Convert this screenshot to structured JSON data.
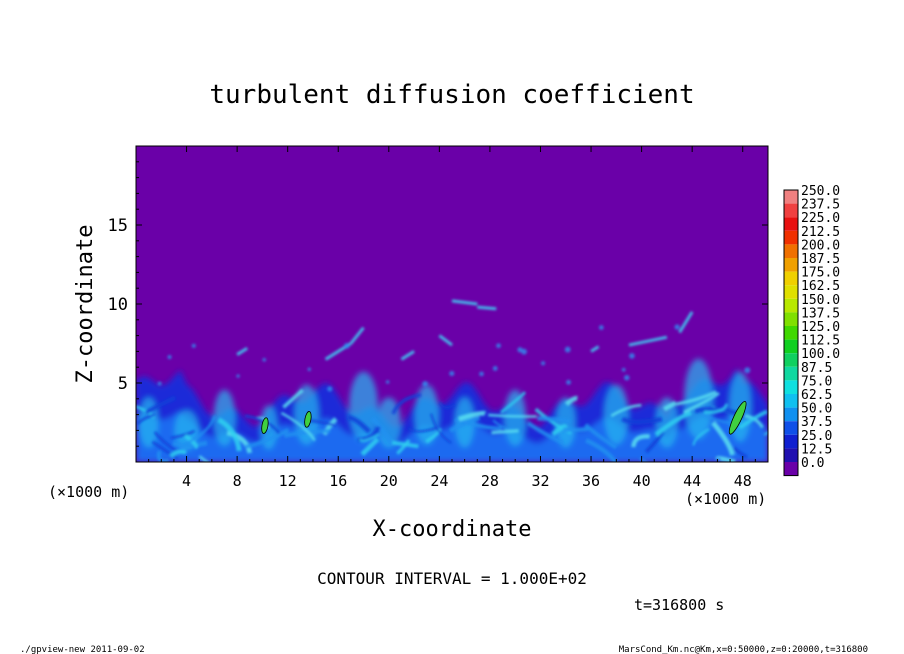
{
  "chart_data": {
    "type": "heatmap",
    "title": "turbulent diffusion coefficient",
    "xlabel": "X-coordinate",
    "ylabel": "Z-coordinate",
    "x_unit": "(×1000 m)",
    "y_unit": "(×1000 m)",
    "xlim": [
      0,
      50
    ],
    "ylim": [
      0,
      20
    ],
    "x_ticks": [
      "4",
      "8",
      "12",
      "16",
      "20",
      "24",
      "28",
      "32",
      "36",
      "40",
      "44",
      "48"
    ],
    "x_tick_values": [
      4,
      8,
      12,
      16,
      20,
      24,
      28,
      32,
      36,
      40,
      44,
      48
    ],
    "y_ticks": [
      "5",
      "10",
      "15"
    ],
    "y_tick_values": [
      5,
      10,
      15
    ],
    "colorbar": {
      "labels": [
        "250.0",
        "237.5",
        "225.0",
        "212.5",
        "200.0",
        "187.5",
        "175.0",
        "162.5",
        "150.0",
        "137.5",
        "125.0",
        "112.5",
        "100.0",
        "87.5",
        "75.0",
        "62.5",
        "50.0",
        "37.5",
        "25.0",
        "12.5",
        "0.0"
      ],
      "colors": [
        "#f08080",
        "#f04040",
        "#e81010",
        "#f03000",
        "#f07000",
        "#f0a000",
        "#f0d000",
        "#e0e000",
        "#b8e800",
        "#80e000",
        "#40d800",
        "#10d020",
        "#10d060",
        "#10d8a0",
        "#10e0e0",
        "#10c0f0",
        "#1090f0",
        "#1050e8",
        "#1020d0",
        "#2010b0",
        "#6a00a8"
      ]
    },
    "background_color": "#6a00a8",
    "high_value_contours": [
      {
        "x": 10.2,
        "z": 2.3
      },
      {
        "x": 13.6,
        "z": 2.7
      },
      {
        "x": 47.6,
        "z": 2.8
      }
    ],
    "contour_interval_text": "CONTOUR INTERVAL = 1.000E+02",
    "time_label": "t=316800 s"
  },
  "footer": {
    "left": "./gpview-new  2011-09-02",
    "right": "MarsCond_Km.nc@Km,x=0:50000,z=0:20000,t=316800"
  }
}
